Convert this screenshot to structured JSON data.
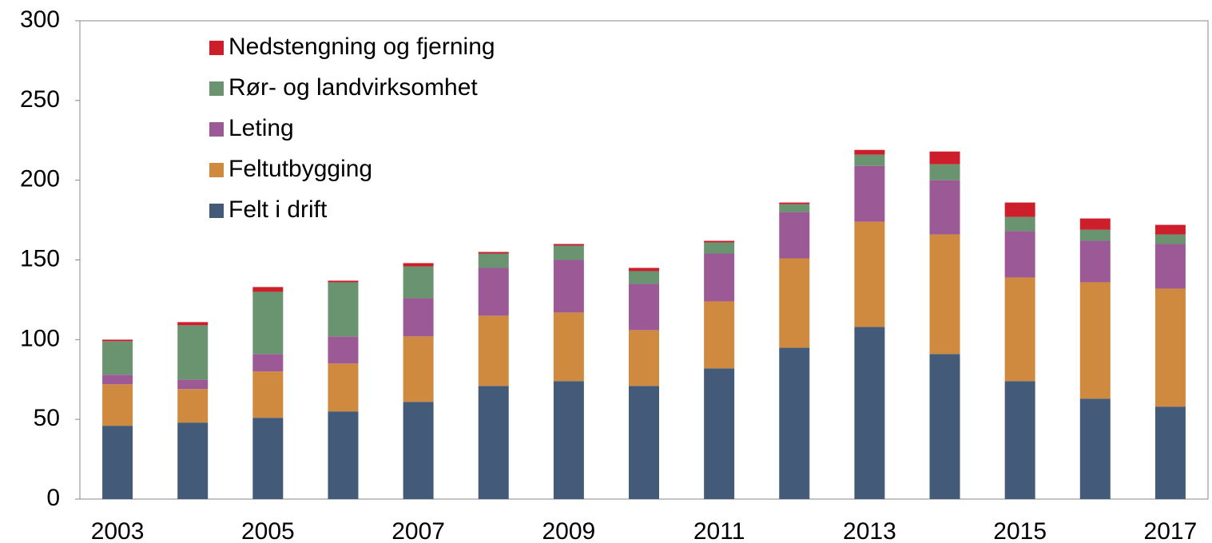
{
  "chart_data": {
    "type": "stacked_bar",
    "categories": [
      "2003",
      null,
      "2005",
      null,
      "2007",
      null,
      "2009",
      null,
      "2011",
      null,
      "2013",
      null,
      "2015",
      null,
      "2017"
    ],
    "series": [
      {
        "name": "Felt i drift",
        "color": "#435a78",
        "values": [
          46,
          48,
          51,
          55,
          61,
          71,
          74,
          71,
          82,
          95,
          108,
          91,
          74,
          63,
          58
        ]
      },
      {
        "name": "Feltutbygging",
        "color": "#d08a40",
        "values": [
          26,
          21,
          29,
          30,
          41,
          44,
          43,
          35,
          42,
          56,
          66,
          75,
          65,
          73,
          74
        ]
      },
      {
        "name": "Leting",
        "color": "#9b5a96",
        "values": [
          6,
          6,
          11,
          17,
          24,
          30,
          33,
          29,
          30,
          29,
          35,
          34,
          29,
          26,
          28
        ]
      },
      {
        "name": "Rør- og landvirksomhet",
        "color": "#6a9470",
        "values": [
          21,
          34,
          39,
          34,
          20,
          9,
          9,
          8,
          7,
          5,
          7,
          10,
          9,
          7,
          6
        ]
      },
      {
        "name": "Nedstengning og fjerning",
        "color": "#cc1f2b",
        "values": [
          1,
          2,
          3,
          1,
          2,
          1,
          1,
          2,
          1,
          1,
          3,
          8,
          9,
          7,
          6
        ]
      }
    ],
    "ylim": [
      0,
      300
    ],
    "yticks": [
      0,
      50,
      100,
      150,
      200,
      250,
      300
    ],
    "grid": false,
    "legend": "top-left"
  }
}
